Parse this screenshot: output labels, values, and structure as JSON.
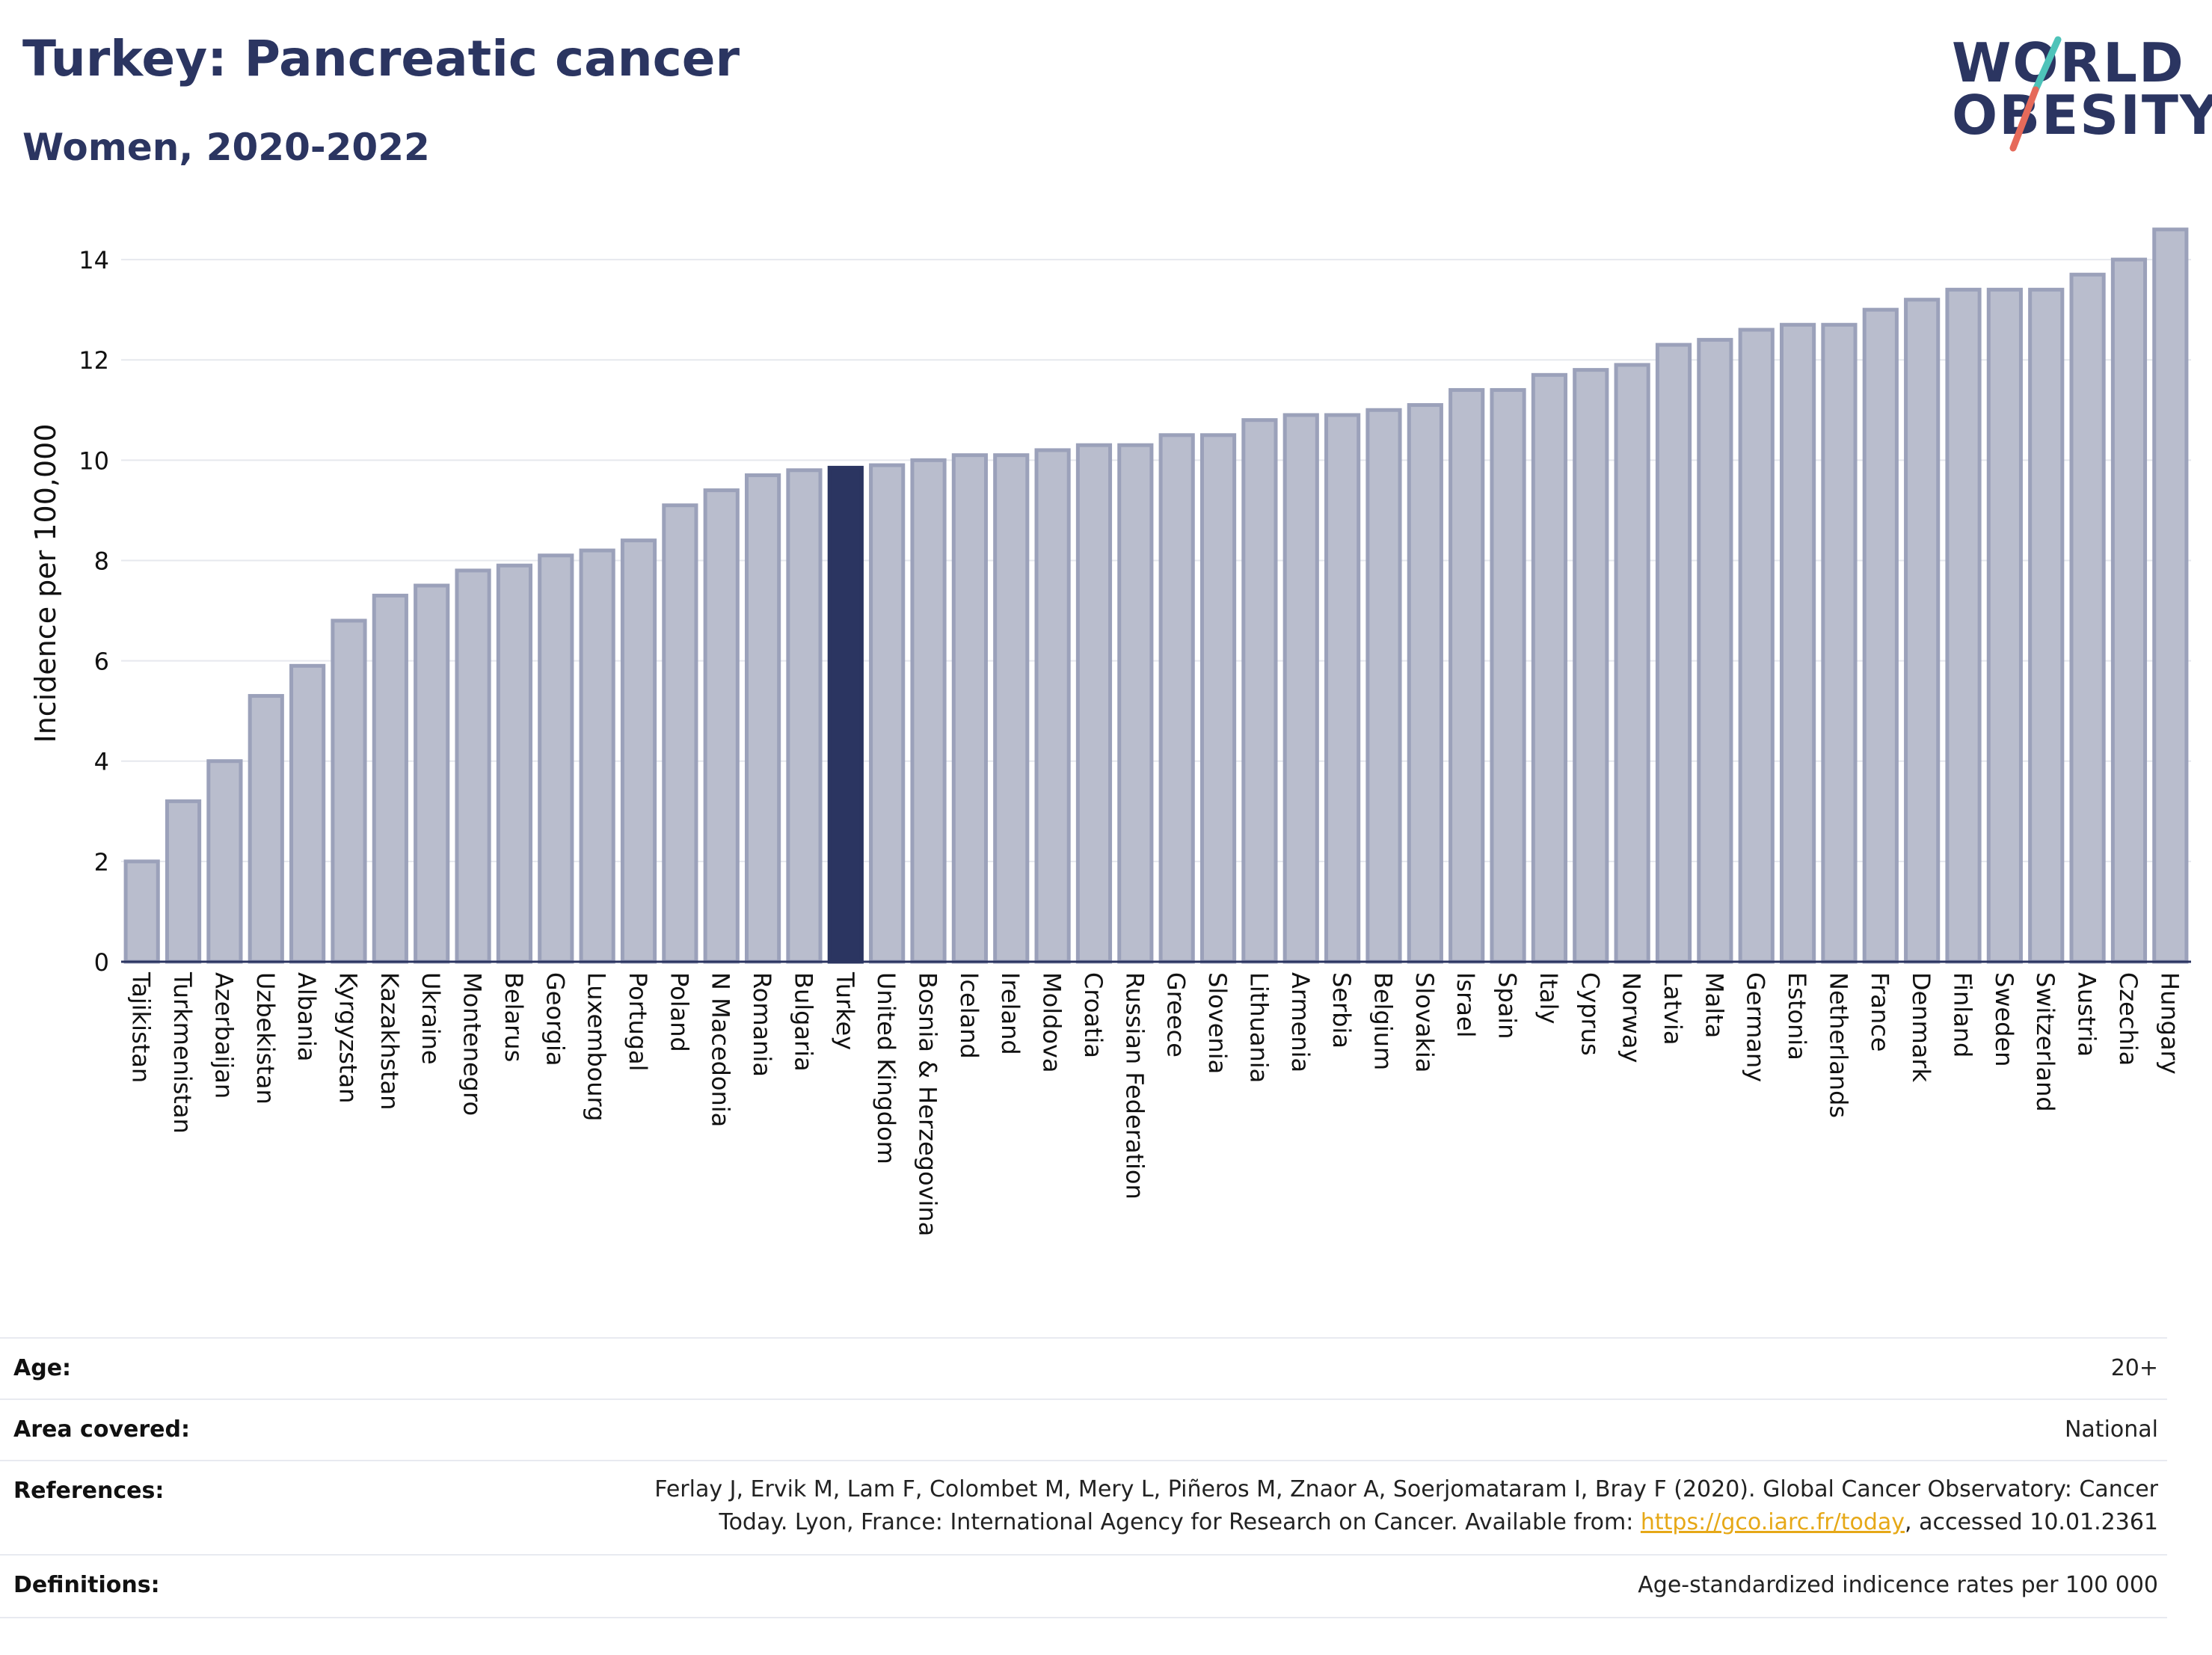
{
  "header": {
    "title": "Turkey: Pancreatic cancer",
    "subtitle": "Women, 2020-2022"
  },
  "logo": {
    "line1": "WORLD",
    "line2": "OBESITY",
    "brand_color": "#2b3561",
    "slash_colors": [
      "#4ec3b9",
      "#e66a5a"
    ]
  },
  "chart_data": {
    "type": "bar",
    "ylabel": "Incidence per 100,000",
    "xlabel": "",
    "ylim": [
      0,
      15
    ],
    "yticks": [
      0,
      2,
      4,
      6,
      8,
      10,
      12,
      14
    ],
    "grid": true,
    "highlight": "Turkey",
    "highlight_color": "#2b3561",
    "bar_color": "#b9bdcd",
    "categories": [
      "Tajikistan",
      "Turkmenistan",
      "Azerbaijan",
      "Uzbekistan",
      "Albania",
      "Kyrgyzstan",
      "Kazakhstan",
      "Ukraine",
      "Montenegro",
      "Belarus",
      "Georgia",
      "Luxembourg",
      "Portugal",
      "Poland",
      "N Macedonia",
      "Romania",
      "Bulgaria",
      "Turkey",
      "United Kingdom",
      "Bosnia & Herzegovina",
      "Iceland",
      "Ireland",
      "Moldova",
      "Croatia",
      "Russian Federation",
      "Greece",
      "Slovenia",
      "Lithuania",
      "Armenia",
      "Serbia",
      "Belgium",
      "Slovakia",
      "Israel",
      "Spain",
      "Italy",
      "Cyprus",
      "Norway",
      "Latvia",
      "Malta",
      "Germany",
      "Estonia",
      "Netherlands",
      "France",
      "Denmark",
      "Finland",
      "Sweden",
      "Switzerland",
      "Austria",
      "Czechia",
      "Hungary"
    ],
    "values": [
      2.0,
      3.2,
      4.0,
      5.3,
      5.9,
      6.8,
      7.3,
      7.5,
      7.8,
      7.9,
      8.1,
      8.2,
      8.4,
      9.1,
      9.4,
      9.7,
      9.8,
      9.85,
      9.9,
      10.0,
      10.1,
      10.1,
      10.2,
      10.3,
      10.3,
      10.5,
      10.5,
      10.8,
      10.9,
      10.9,
      11.0,
      11.1,
      11.4,
      11.4,
      11.7,
      11.8,
      11.9,
      12.3,
      12.4,
      12.6,
      12.7,
      12.7,
      13.0,
      13.2,
      13.4,
      13.4,
      13.4,
      13.7,
      14.0,
      14.6
    ]
  },
  "meta": {
    "age": {
      "label": "Age:",
      "value": "20+"
    },
    "area": {
      "label": "Area covered:",
      "value": "National"
    },
    "references": {
      "label": "References:",
      "line1": "Ferlay J, Ervik M, Lam F, Colombet M, Mery L, Piñeros M, Znaor A, Soerjomataram I, Bray F (2020). Global Cancer Observatory: Cancer",
      "line2_pre": "Today. Lyon, France: International Agency for Research on Cancer. Available from: ",
      "link": "https://gco.iarc.fr/today",
      "line2_post": ", accessed 10.01.2361"
    },
    "definitions": {
      "label": "Definitions:",
      "value": "Age-standardized indicence rates per 100 000"
    }
  }
}
